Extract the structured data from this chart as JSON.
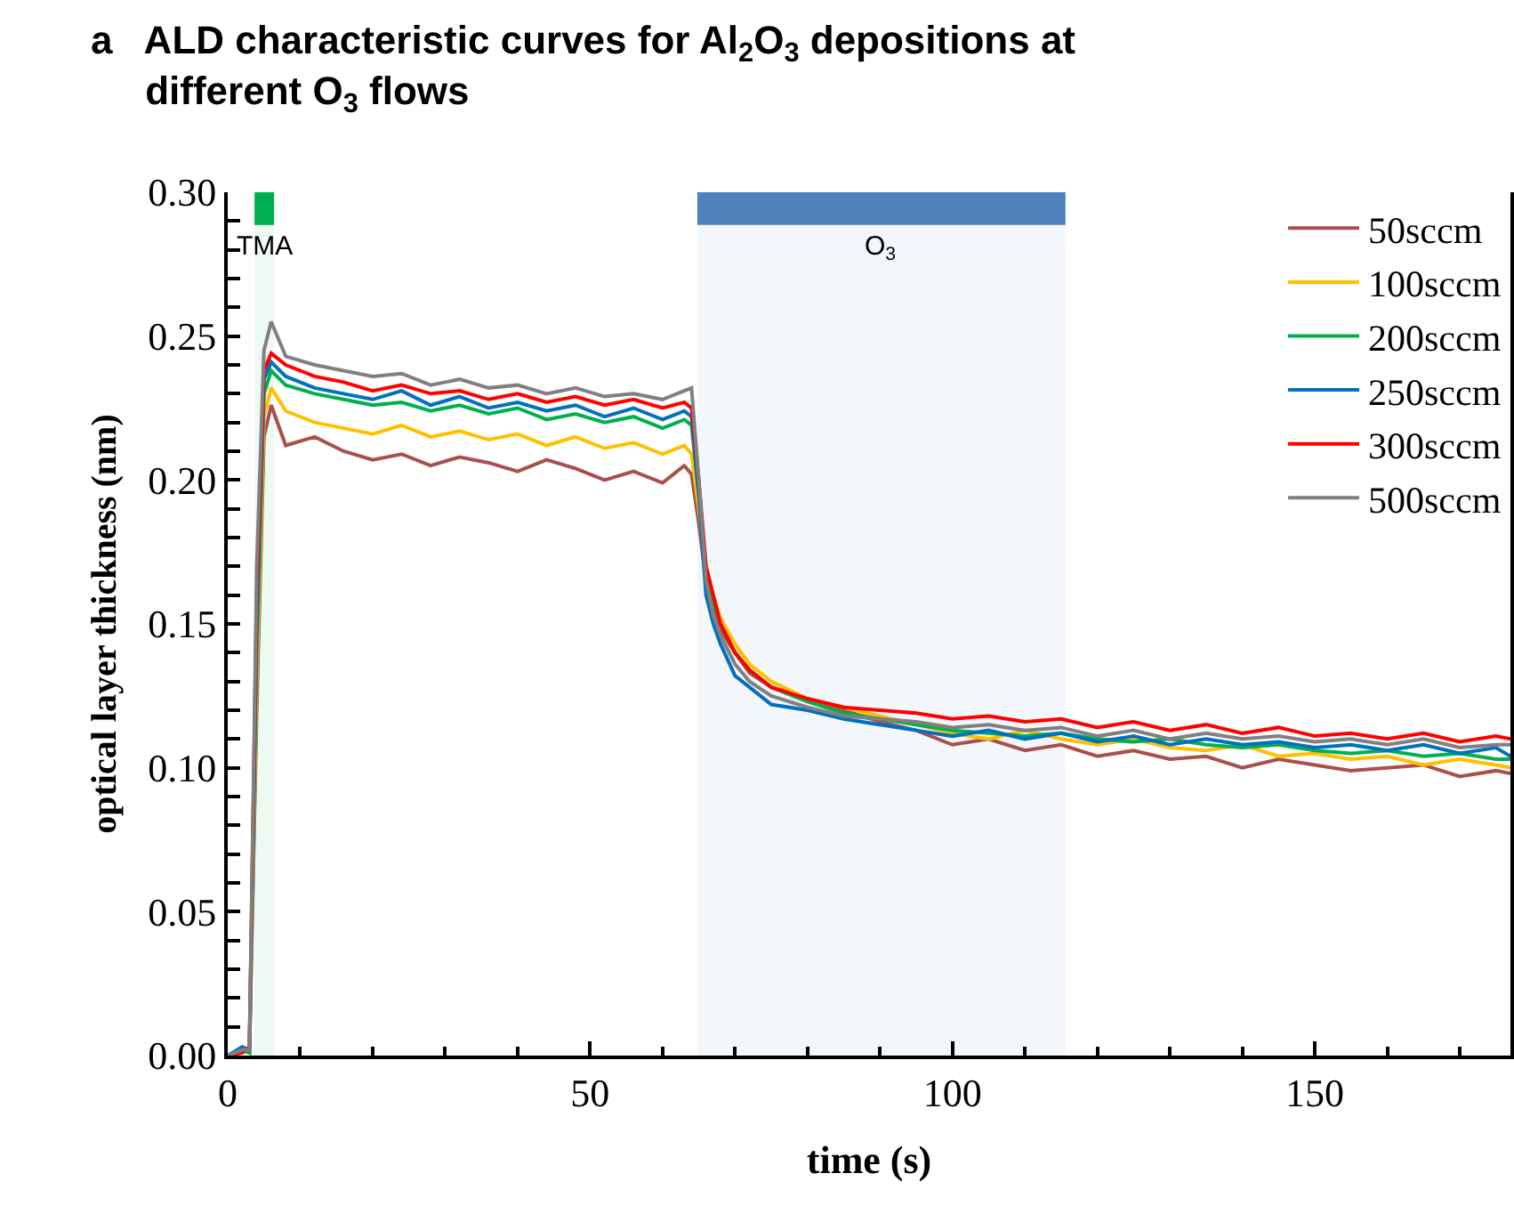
{
  "chart_data": {
    "type": "line",
    "title": "a   ALD characteristic curves for Al$_{2}$O$_{3}$ depositions at different O$_{3}$ flows",
    "xlabel": "time (s)",
    "ylabel": "optical layer thickness (nm)",
    "x": [
      0,
      2,
      3,
      4,
      5,
      6,
      8,
      12,
      16,
      20,
      24,
      28,
      32,
      36,
      40,
      44,
      48,
      52,
      56,
      60,
      63,
      64,
      65,
      66,
      67,
      68,
      70,
      72,
      75,
      80,
      85,
      90,
      95,
      100,
      105,
      110,
      115,
      120,
      125,
      130,
      135,
      140,
      145,
      150,
      155,
      160,
      165,
      170,
      175,
      177
    ],
    "series": [
      {
        "name": "50sccm",
        "color": "#a9504c",
        "values": [
          0,
          0.002,
          0.001,
          0.12,
          0.215,
          0.226,
          0.212,
          0.215,
          0.21,
          0.207,
          0.209,
          0.205,
          0.208,
          0.206,
          0.203,
          0.207,
          0.204,
          0.2,
          0.203,
          0.199,
          0.205,
          0.202,
          0.185,
          0.165,
          0.155,
          0.148,
          0.14,
          0.133,
          0.128,
          0.124,
          0.12,
          0.116,
          0.113,
          0.108,
          0.11,
          0.106,
          0.108,
          0.104,
          0.106,
          0.103,
          0.104,
          0.1,
          0.103,
          0.101,
          0.099,
          0.1,
          0.101,
          0.097,
          0.099,
          0.098
        ]
      },
      {
        "name": "100sccm",
        "color": "#ffc000",
        "values": [
          0,
          0.001,
          0.002,
          0.13,
          0.222,
          0.232,
          0.224,
          0.22,
          0.218,
          0.216,
          0.219,
          0.215,
          0.217,
          0.214,
          0.216,
          0.212,
          0.215,
          0.211,
          0.213,
          0.209,
          0.212,
          0.209,
          0.19,
          0.17,
          0.16,
          0.152,
          0.143,
          0.136,
          0.13,
          0.124,
          0.121,
          0.118,
          0.115,
          0.112,
          0.11,
          0.113,
          0.11,
          0.108,
          0.11,
          0.107,
          0.106,
          0.108,
          0.104,
          0.105,
          0.103,
          0.104,
          0.101,
          0.103,
          0.101,
          0.1
        ]
      },
      {
        "name": "200sccm",
        "color": "#00b050",
        "values": [
          0,
          0.002,
          0.001,
          0.14,
          0.23,
          0.238,
          0.233,
          0.23,
          0.228,
          0.226,
          0.227,
          0.224,
          0.226,
          0.223,
          0.225,
          0.221,
          0.223,
          0.22,
          0.222,
          0.218,
          0.221,
          0.219,
          0.195,
          0.168,
          0.157,
          0.15,
          0.14,
          0.134,
          0.128,
          0.123,
          0.119,
          0.117,
          0.115,
          0.113,
          0.112,
          0.111,
          0.112,
          0.11,
          0.109,
          0.11,
          0.108,
          0.107,
          0.108,
          0.106,
          0.105,
          0.106,
          0.104,
          0.105,
          0.103,
          0.103
        ]
      },
      {
        "name": "250sccm",
        "color": "#0070c0",
        "values": [
          0,
          0.003,
          0.002,
          0.15,
          0.235,
          0.241,
          0.236,
          0.232,
          0.23,
          0.228,
          0.231,
          0.226,
          0.229,
          0.225,
          0.227,
          0.224,
          0.226,
          0.222,
          0.225,
          0.221,
          0.224,
          0.222,
          0.195,
          0.16,
          0.15,
          0.143,
          0.132,
          0.128,
          0.122,
          0.12,
          0.117,
          0.115,
          0.113,
          0.111,
          0.113,
          0.11,
          0.112,
          0.109,
          0.111,
          0.108,
          0.11,
          0.108,
          0.109,
          0.107,
          0.108,
          0.106,
          0.108,
          0.105,
          0.107,
          0.104
        ]
      },
      {
        "name": "300sccm",
        "color": "#ff0000",
        "values": [
          0,
          0.001,
          0.003,
          0.16,
          0.238,
          0.244,
          0.24,
          0.236,
          0.234,
          0.231,
          0.233,
          0.23,
          0.231,
          0.228,
          0.23,
          0.227,
          0.229,
          0.226,
          0.228,
          0.225,
          0.227,
          0.225,
          0.2,
          0.17,
          0.16,
          0.15,
          0.14,
          0.134,
          0.128,
          0.124,
          0.121,
          0.12,
          0.119,
          0.117,
          0.118,
          0.116,
          0.117,
          0.114,
          0.116,
          0.113,
          0.115,
          0.112,
          0.114,
          0.111,
          0.112,
          0.11,
          0.112,
          0.109,
          0.111,
          0.11
        ]
      },
      {
        "name": "500sccm",
        "color": "#808080",
        "values": [
          0,
          0.002,
          0.002,
          0.17,
          0.245,
          0.255,
          0.243,
          0.24,
          0.238,
          0.236,
          0.237,
          0.233,
          0.235,
          0.232,
          0.233,
          0.23,
          0.232,
          0.229,
          0.23,
          0.228,
          0.231,
          0.232,
          0.2,
          0.165,
          0.153,
          0.146,
          0.136,
          0.13,
          0.125,
          0.121,
          0.118,
          0.117,
          0.116,
          0.114,
          0.115,
          0.113,
          0.114,
          0.111,
          0.113,
          0.11,
          0.112,
          0.11,
          0.111,
          0.109,
          0.11,
          0.108,
          0.11,
          0.107,
          0.108,
          0.108
        ]
      }
    ],
    "bands": [
      {
        "axis": "x",
        "from": 3.7,
        "to": 6.4,
        "label": "TMA",
        "color": "#00b050"
      },
      {
        "axis": "x",
        "from": 64.8,
        "to": 115.6,
        "label": "O$_{3}$",
        "color": "#4f81bd"
      }
    ],
    "xlim": [
      0,
      177
    ],
    "xticks": [
      0,
      {
        "value": 10,
        "label": null
      },
      {
        "value": 20,
        "label": null
      },
      {
        "value": 30,
        "label": null
      },
      {
        "value": 40,
        "label": null
      },
      50,
      {
        "value": 60,
        "label": null
      },
      {
        "value": 70,
        "label": null
      },
      {
        "value": 80,
        "label": null
      },
      {
        "value": 90,
        "label": null
      },
      100,
      {
        "value": 110,
        "label": null
      },
      {
        "value": 120,
        "label": null
      },
      {
        "value": 130,
        "label": null
      },
      {
        "value": 140,
        "label": null
      },
      150,
      {
        "value": 160,
        "label": null
      },
      {
        "value": 170,
        "label": null
      }
    ],
    "ylim": [
      0,
      0.3
    ],
    "yticks": [
      {
        "value": 0,
        "label": "0.00"
      },
      {
        "value": 0.01,
        "label": null
      },
      {
        "value": 0.02,
        "label": null
      },
      {
        "value": 0.03,
        "label": null
      },
      {
        "value": 0.04,
        "label": null
      },
      {
        "value": 0.05,
        "label": "0.05"
      },
      {
        "value": 0.06,
        "label": null
      },
      {
        "value": 0.07,
        "label": null
      },
      {
        "value": 0.08,
        "label": null
      },
      {
        "value": 0.09,
        "label": null
      },
      {
        "value": 0.1,
        "label": "0.10"
      },
      {
        "value": 0.11,
        "label": null
      },
      {
        "value": 0.12,
        "label": null
      },
      {
        "value": 0.13,
        "label": null
      },
      {
        "value": 0.14,
        "label": null
      },
      {
        "value": 0.15,
        "label": "0.15"
      },
      {
        "value": 0.16,
        "label": null
      },
      {
        "value": 0.17,
        "label": null
      },
      {
        "value": 0.18,
        "label": null
      },
      {
        "value": 0.19,
        "label": null
      },
      {
        "value": 0.2,
        "label": "0.20"
      },
      {
        "value": 0.21,
        "label": null
      },
      {
        "value": 0.22,
        "label": null
      },
      {
        "value": 0.23,
        "label": null
      },
      {
        "value": 0.24,
        "label": null
      },
      {
        "value": 0.25,
        "label": "0.25"
      },
      {
        "value": 0.26,
        "label": null
      },
      {
        "value": 0.27,
        "label": null
      },
      {
        "value": 0.28,
        "label": null
      },
      {
        "value": 0.29,
        "label": null
      },
      {
        "value": 0.3,
        "label": "0.30"
      }
    ],
    "grid": false,
    "legend": "top right",
    "marker": "none",
    "line_style": "solid"
  }
}
